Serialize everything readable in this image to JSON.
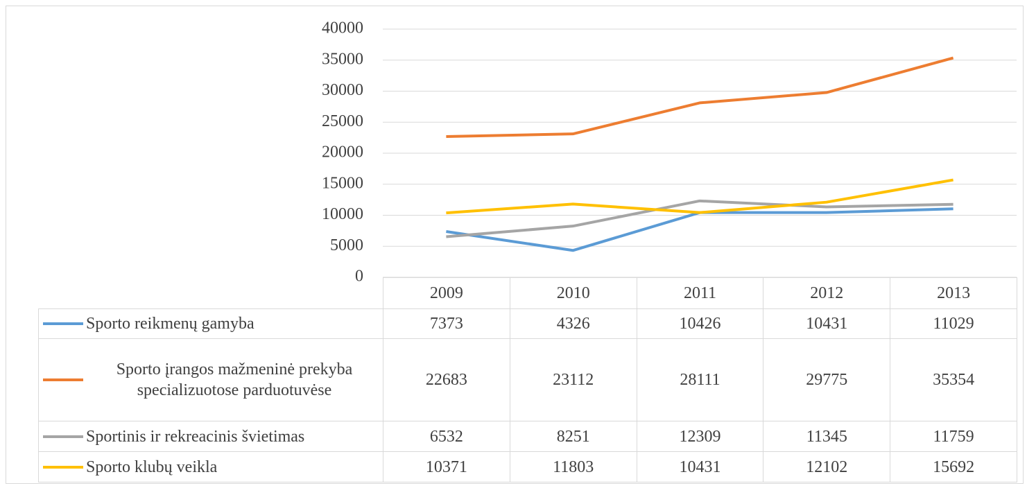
{
  "chart_data": {
    "type": "line",
    "categories": [
      "2009",
      "2010",
      "2011",
      "2012",
      "2013"
    ],
    "series": [
      {
        "name": "Sporto reikmenų gamyba",
        "color": "#5b9bd5",
        "values": [
          7373,
          4326,
          10426,
          10431,
          11029
        ]
      },
      {
        "name": "Sporto įrangos mažmeninė prekyba specializuotose parduotuvėse",
        "color": "#ed7d31",
        "values": [
          22683,
          23112,
          28111,
          29775,
          35354
        ]
      },
      {
        "name": "Sportinis ir rekreacinis švietimas",
        "color": "#a5a5a5",
        "values": [
          6532,
          8251,
          12309,
          11345,
          11759
        ]
      },
      {
        "name": "Sporto klubų veikla",
        "color": "#ffc000",
        "values": [
          10371,
          11803,
          10431,
          12102,
          15692
        ]
      }
    ],
    "ylim": [
      0,
      40000
    ],
    "yticks": [
      0,
      5000,
      10000,
      15000,
      20000,
      25000,
      30000,
      35000,
      40000
    ],
    "grid": true
  }
}
